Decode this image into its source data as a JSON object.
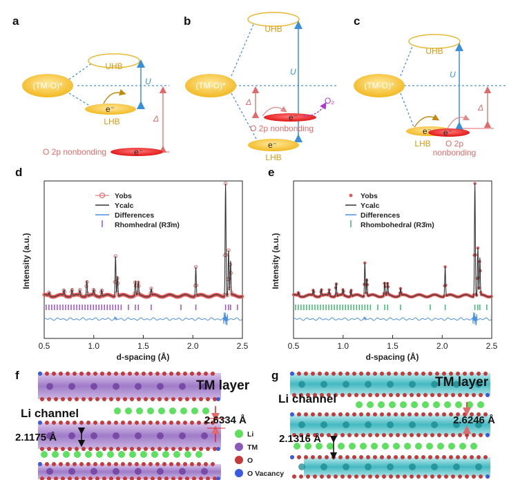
{
  "panels": {
    "a": "a",
    "b": "b",
    "c": "c",
    "d": "d",
    "e": "e",
    "f": "f",
    "g": "g"
  },
  "band_labels": {
    "uhb": "UHB",
    "lhb": "LHB",
    "tmo": "(TM-O)*",
    "u": "U",
    "delta": "Δ",
    "electron": "e⁻",
    "o2p": "O 2p nonbonding",
    "o2p_line1": "O 2p",
    "o2p_line2": "nonbonding",
    "o2": "O₂"
  },
  "chart_data": [
    {
      "type": "line",
      "panel": "d",
      "xlabel": "d-spacing (Å)",
      "ylabel": "Intensity (a.u.)",
      "xlim": [
        0.5,
        2.5
      ],
      "xticks": [
        "0.5",
        "1.0",
        "1.5",
        "2.0",
        "2.5"
      ],
      "legend": [
        "Yobs",
        "Ycalc",
        "Differences",
        "Rhomhedral (R3̄m)"
      ],
      "legend_colors": [
        "#e05a5a",
        "#333333",
        "#4a8fe0",
        "#a04ad0"
      ],
      "peaks": [
        [
          0.55,
          0.03
        ],
        [
          0.7,
          0.05
        ],
        [
          0.78,
          0.06
        ],
        [
          0.86,
          0.05
        ],
        [
          0.93,
          0.14
        ],
        [
          1.0,
          0.05
        ],
        [
          1.08,
          0.06
        ],
        [
          1.22,
          0.36
        ],
        [
          1.24,
          0.18
        ],
        [
          1.42,
          0.13
        ],
        [
          1.45,
          0.12
        ],
        [
          1.58,
          0.06
        ],
        [
          2.03,
          0.26
        ],
        [
          2.33,
          1.0
        ],
        [
          2.36,
          0.4
        ],
        [
          2.38,
          0.3
        ]
      ]
    },
    {
      "type": "line",
      "panel": "e",
      "xlabel": "d-spacing (Å)",
      "ylabel": "Intensity (a.u.)",
      "xlim": [
        0.5,
        2.5
      ],
      "xticks": [
        "0.5",
        "1.0",
        "1.5",
        "2.0",
        "2.5"
      ],
      "legend": [
        "Yobs",
        "Ycalc",
        "Differences",
        "Rhombohedral (R3̄m)"
      ],
      "legend_colors": [
        "#e05a5a",
        "#333333",
        "#4a8fe0",
        "#3aba6a"
      ],
      "peaks": [
        [
          0.55,
          0.03
        ],
        [
          0.7,
          0.05
        ],
        [
          0.78,
          0.06
        ],
        [
          0.86,
          0.05
        ],
        [
          0.93,
          0.12
        ],
        [
          1.0,
          0.05
        ],
        [
          1.08,
          0.06
        ],
        [
          1.22,
          0.3
        ],
        [
          1.24,
          0.16
        ],
        [
          1.42,
          0.12
        ],
        [
          1.45,
          0.11
        ],
        [
          1.58,
          0.06
        ],
        [
          2.03,
          0.26
        ],
        [
          2.33,
          1.0
        ],
        [
          2.36,
          0.42
        ],
        [
          2.38,
          0.33
        ]
      ]
    }
  ],
  "structure_f": {
    "tm_layer": "TM layer",
    "li_channel": "Li channel",
    "d1": "2.6334 Å",
    "d2": "2.1175 Å",
    "legend": [
      "Li",
      "TM",
      "O",
      "O Vacancy"
    ],
    "legend_colors": [
      "#5ee05e",
      "#8a5ab8",
      "#c43a3a",
      "#3a5ae0"
    ]
  },
  "structure_g": {
    "tm_layer": "TM layer",
    "li_channel": "Li channel",
    "d1": "2.6246 Å",
    "d2": "2.1316 Å"
  }
}
